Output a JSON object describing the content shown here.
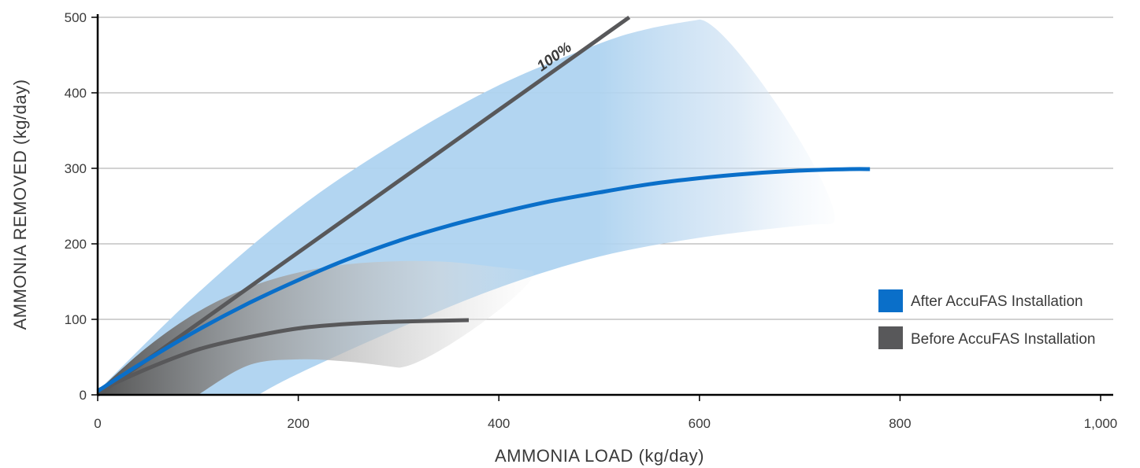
{
  "chart_data": {
    "type": "line",
    "title": "",
    "xlabel": "AMMONIA LOAD (kg/day)",
    "ylabel": "AMMONIA REMOVED (kg/day)",
    "xlim": [
      0,
      1000
    ],
    "ylim": [
      0,
      500
    ],
    "x_ticks": [
      0,
      200,
      400,
      600,
      800,
      1000
    ],
    "x_tick_labels": [
      "0",
      "200",
      "400",
      "600",
      "800",
      "1,000"
    ],
    "y_ticks": [
      0,
      100,
      200,
      300,
      400,
      500
    ],
    "y_tick_labels": [
      "0",
      "100",
      "200",
      "300",
      "400",
      "500"
    ],
    "grid": "horizontal",
    "legend_placement": "right",
    "reference_line": {
      "label": "100%",
      "x": [
        0,
        530
      ],
      "y": [
        0,
        500
      ],
      "color": "#58585a"
    },
    "series": [
      {
        "name": "After AccuFAS Installation",
        "color": "#0a6fc9",
        "band_color": "#aed3f0",
        "x": [
          0,
          50,
          100,
          150,
          200,
          250,
          300,
          350,
          400,
          450,
          500,
          550,
          600,
          650,
          700,
          750,
          770
        ],
        "y": [
          5,
          47,
          86,
          121,
          152,
          180,
          204,
          224,
          241,
          256,
          268,
          279,
          287,
          293,
          297,
          299,
          299
        ],
        "band_upper": {
          "x": [
            0,
            100,
            200,
            300,
            400,
            500,
            550,
            600
          ],
          "y": [
            5,
            135,
            247,
            336,
            410,
            465,
            485,
            497
          ]
        },
        "band_lower": {
          "x": [
            160,
            200,
            300,
            400,
            500,
            600,
            700,
            730
          ],
          "y": [
            0,
            28,
            88,
            142,
            183,
            208,
            224,
            226
          ]
        }
      },
      {
        "name": "Before AccuFAS Installation",
        "color": "#58585a",
        "band_color": "#8c8c8c",
        "x": [
          0,
          50,
          100,
          150,
          200,
          250,
          300,
          370
        ],
        "y": [
          5,
          35,
          60,
          76,
          88,
          94,
          97,
          99
        ],
        "band_upper": {
          "x": [
            0,
            50,
            100,
            150,
            200,
            250,
            300,
            350,
            400,
            430
          ],
          "y": [
            5,
            64,
            110,
            142,
            162,
            173,
            177,
            176,
            169,
            165
          ]
        },
        "band_lower": {
          "x": [
            100,
            150,
            200,
            250,
            300
          ],
          "y": [
            0,
            39,
            47,
            44,
            36
          ]
        }
      }
    ]
  }
}
